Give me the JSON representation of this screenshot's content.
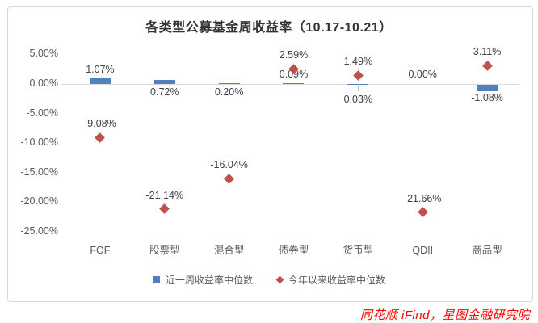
{
  "source": "同花顺 iFind，星图金融研究院",
  "colors": {
    "bar": "#4F81BD",
    "marker": "#C0504D",
    "axis_line": "#d9d9d9",
    "leader_line": "#bfbfbf",
    "data_label": "#404040",
    "tick_label": "#595959",
    "title": "#333333",
    "source_text": "#ff0000"
  },
  "chart_data": {
    "type": "bar",
    "subtype": "combo: bars + diamond scatter markers",
    "title": "各类型公募基金周收益率（10.17-10.21）",
    "categories": [
      "FOF",
      "股票型",
      "混合型",
      "债券型",
      "货币型",
      "QDII",
      "商品型"
    ],
    "series": [
      {
        "name": "近一周收益率中位数",
        "type": "bar",
        "color": "#4F81BD",
        "values": [
          1.07,
          0.72,
          0.2,
          0.09,
          0.03,
          0.0,
          -1.08
        ],
        "labels": [
          "1.07%",
          "0.72%",
          "0.20%",
          "0.09%",
          "0.03%",
          "0.00%",
          "-1.08%"
        ],
        "label_placement": [
          "above-bar",
          "below-axis",
          "below-axis",
          "above-axis",
          "below-axis-leader",
          "above-axis",
          "below-bar"
        ]
      },
      {
        "name": "今年以来收益率中位数",
        "type": "scatter",
        "marker": "diamond",
        "color": "#C0504D",
        "values": [
          -9.08,
          -21.14,
          -16.04,
          2.59,
          1.49,
          -21.66,
          3.11
        ],
        "labels": [
          "-9.08%",
          "-21.14%",
          "-16.04%",
          "2.59%",
          "1.49%",
          "-21.66%",
          "3.11%"
        ]
      }
    ],
    "y_axis": {
      "tick_labels": [
        "5.00%",
        "0.00%",
        "-5.00%",
        "-10.00%",
        "-15.00%",
        "-20.00%",
        "-25.00%"
      ],
      "tick_values": [
        5,
        0,
        -5,
        -10,
        -15,
        -20,
        -25
      ],
      "ylim": [
        -27.5,
        7.5
      ]
    },
    "grid": "off (zero axis line only)",
    "legend_position": "bottom-center"
  }
}
